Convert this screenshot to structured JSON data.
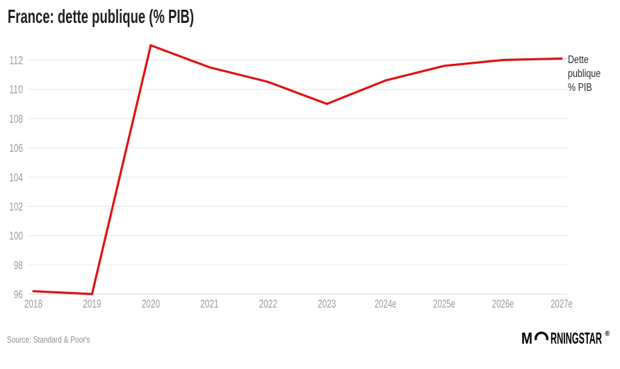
{
  "header": {
    "title": "France: dette publique (% PIB)"
  },
  "chart_data": {
    "type": "line",
    "title": "France: dette publique (% PIB)",
    "categories": [
      "2018",
      "2019",
      "2020",
      "2021",
      "2022",
      "2023",
      "2024e",
      "2025e",
      "2026e",
      "2027e"
    ],
    "series": [
      {
        "name": "Dette publique % PIB",
        "color": "#e01212",
        "values": [
          96.2,
          96,
          113,
          111.5,
          110.5,
          109,
          110.6,
          111.6,
          112,
          112.1
        ]
      }
    ],
    "yticks": [
      96,
      98,
      100,
      102,
      104,
      106,
      108,
      110,
      112
    ],
    "ylim": [
      95.8,
      113.4
    ],
    "xlabel": "",
    "ylabel": "",
    "grid": "horizontal",
    "legend_position": "right-of-line-end"
  },
  "legend": {
    "label": "Dette publique % PIB",
    "lines": [
      "Dette",
      "publique",
      "% PIB"
    ]
  },
  "footer": {
    "source": "Source: Standard & Poor's",
    "logo": {
      "m": "M",
      "rest": "RNINGSTAR",
      "registered": "®"
    }
  },
  "colors": {
    "line": "#e01212",
    "grid": "#e6e6e6",
    "grid_bottom": "#d8d8d8",
    "leader": "#c4c4c4",
    "axis_labels": "#9b9b9b",
    "title": "#1f1f1f",
    "legend_text": "#2b2b2b",
    "source_text": "#8f8f8f",
    "logo": "#000000"
  }
}
